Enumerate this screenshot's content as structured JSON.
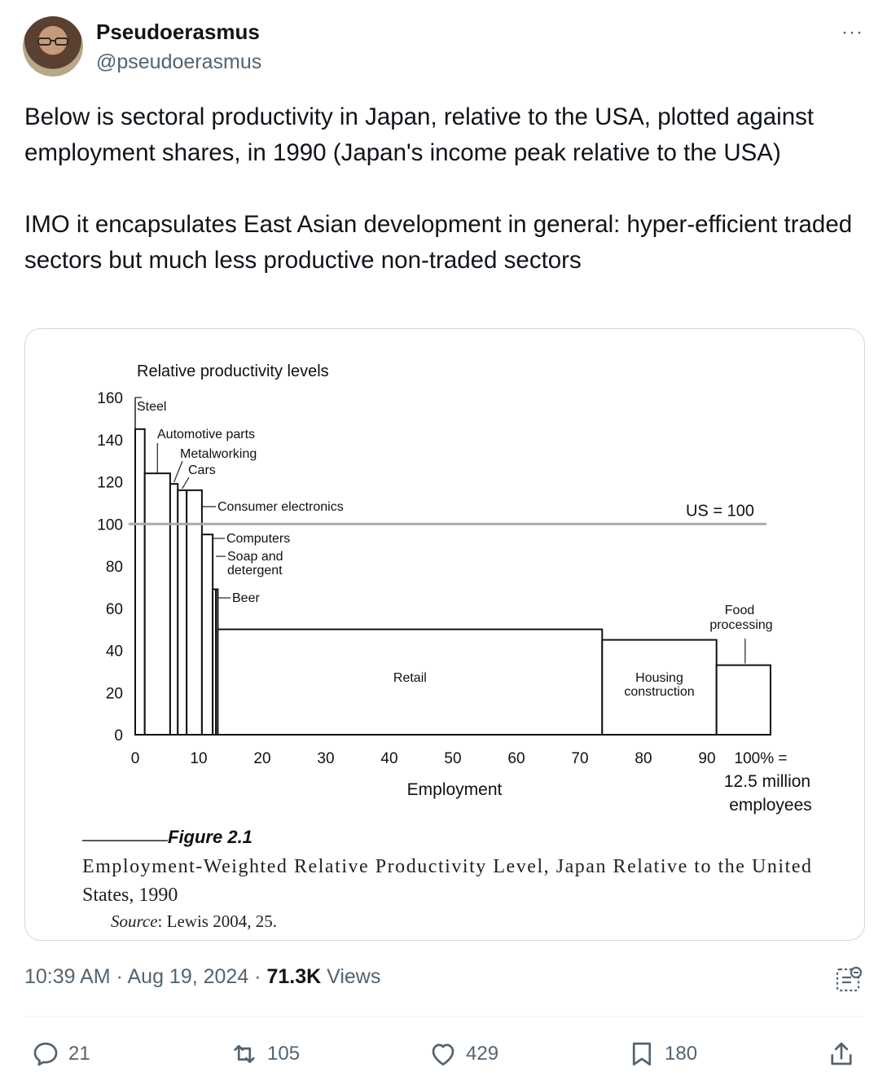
{
  "author": {
    "display_name": "Pseudoerasmus",
    "handle": "@pseudoerasmus"
  },
  "more_label": "···",
  "tweet": {
    "paragraph1": "Below is sectoral productivity in Japan, relative to the USA, plotted against employment shares, in 1990 (Japan's income peak relative to the USA)",
    "paragraph2": "IMO it encapsulates East Asian development in general: hyper-efficient traded sectors but much less productive non-traded sectors"
  },
  "meta": {
    "time": "10:39 AM",
    "sep1": " · ",
    "date": "Aug 19, 2024",
    "sep2": " · ",
    "views_count": "71.3K",
    "views_label": " Views"
  },
  "actions": {
    "replies": "21",
    "reposts": "105",
    "likes": "429",
    "bookmarks": "180"
  },
  "figure": {
    "caption_number": "Figure 2.1",
    "caption_title_line1": "Employment-Weighted Relative Productivity Level, Japan Relative to the United",
    "caption_title_line2": "States, 1990",
    "source_label": "Source",
    "source_text": ": Lewis 2004, 25."
  },
  "chart_data": {
    "type": "bar",
    "title": "",
    "ylabel": "Relative productivity levels",
    "xlabel": "Employment",
    "x_last_tick_label": "100% =",
    "x_note_line1": "12.5 million",
    "x_note_line2": "employees",
    "ylim": [
      0,
      160
    ],
    "xlim": [
      0,
      100
    ],
    "yticks": [
      0,
      20,
      40,
      60,
      80,
      100,
      120,
      140,
      160
    ],
    "xticks": [
      0,
      10,
      20,
      30,
      40,
      50,
      60,
      70,
      80,
      90
    ],
    "reference_line": {
      "value": 100,
      "label": "US = 100"
    },
    "series": [
      {
        "category": "Steel",
        "x_start": 0,
        "x_end": 1.5,
        "value": 145
      },
      {
        "category": "Automotive parts",
        "x_start": 1.5,
        "x_end": 5.5,
        "value": 124
      },
      {
        "category": "Metalworking",
        "x_start": 5.5,
        "x_end": 6.7,
        "value": 119
      },
      {
        "category": "Cars",
        "x_start": 6.7,
        "x_end": 8.1,
        "value": 116
      },
      {
        "category": "Consumer electronics",
        "x_start": 8.1,
        "x_end": 10.5,
        "value": 116
      },
      {
        "category": "Computers",
        "x_start": 10.5,
        "x_end": 12.2,
        "value": 95
      },
      {
        "category": "Soap and detergent",
        "x_start": 12.2,
        "x_end": 12.7,
        "value": 69
      },
      {
        "category": "Beer",
        "x_start": 12.7,
        "x_end": 13.0,
        "value": 69
      },
      {
        "category": "Retail",
        "x_start": 13.0,
        "x_end": 73.5,
        "value": 50
      },
      {
        "category": "Housing construction",
        "x_start": 73.5,
        "x_end": 91.5,
        "value": 45
      },
      {
        "category": "Food processing",
        "x_start": 91.5,
        "x_end": 100,
        "value": 33
      }
    ],
    "grid": false
  }
}
